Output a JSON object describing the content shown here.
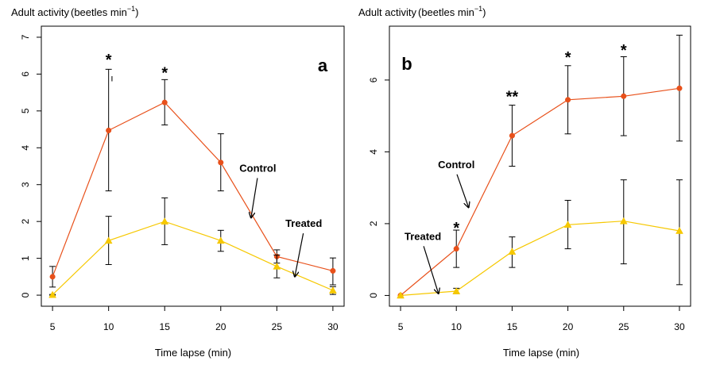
{
  "chart_data": [
    {
      "type": "line",
      "panel_label": "a",
      "ylabel": "Adult activity",
      "ylabel_unit": "beetles min",
      "ylabel_unit_exp": "−1",
      "xlabel": "Time lapse (min)",
      "x": [
        5,
        10,
        15,
        20,
        25,
        30
      ],
      "xlim": [
        4,
        31
      ],
      "ylim": [
        -0.3,
        7.3
      ],
      "xticks": [
        5,
        10,
        15,
        20,
        25,
        30
      ],
      "yticks": [
        0,
        1,
        2,
        3,
        4,
        5,
        6,
        7
      ],
      "ytick_rotation": "vertical",
      "series": [
        {
          "name": "Control",
          "color": "#E8501A",
          "marker": "circle",
          "values": [
            0.5,
            4.47,
            5.23,
            3.6,
            1.05,
            0.66
          ],
          "err_low": [
            0.22,
            2.83,
            4.62,
            2.83,
            0.87,
            0.28
          ],
          "err_high": [
            0.78,
            6.13,
            5.85,
            4.38,
            1.23,
            1.01
          ]
        },
        {
          "name": "Treated",
          "color": "#F6C800",
          "marker": "triangle",
          "values": [
            0.01,
            1.48,
            2.0,
            1.48,
            0.78,
            0.13
          ],
          "err_low": [
            0.0,
            0.83,
            1.37,
            1.19,
            0.47,
            0.02
          ],
          "err_high": [
            0.02,
            2.14,
            2.64,
            1.76,
            1.09,
            0.23
          ]
        }
      ],
      "significance": [
        {
          "x": 10,
          "y": 6.5,
          "text": "*"
        },
        {
          "x": 15,
          "y": 6.15,
          "text": "*"
        }
      ],
      "annotations": [
        {
          "text": "Control",
          "x": 23.3,
          "y": 3.35,
          "arrow_to": [
            22.7,
            2.1
          ]
        },
        {
          "text": "Treated",
          "x": 27.4,
          "y": 1.85,
          "arrow_to": [
            26.6,
            0.5
          ]
        }
      ],
      "stray_marks": [
        {
          "text": "ı",
          "x": 10.3,
          "y": 5.8
        }
      ]
    },
    {
      "type": "line",
      "panel_label": "b",
      "ylabel": "Adult activity",
      "ylabel_unit": "beetles min",
      "ylabel_unit_exp": "−1",
      "xlabel": "Time lapse (min)",
      "x": [
        5,
        10,
        15,
        20,
        25,
        30
      ],
      "xlim": [
        4,
        31
      ],
      "ylim": [
        -0.3,
        7.5
      ],
      "xticks": [
        5,
        10,
        15,
        20,
        25,
        30
      ],
      "yticks": [
        0,
        2,
        4,
        6
      ],
      "ytick_rotation": "vertical",
      "series": [
        {
          "name": "Control",
          "color": "#E8501A",
          "marker": "circle",
          "values": [
            0.0,
            1.3,
            4.45,
            5.45,
            5.55,
            5.77
          ],
          "err_low": [
            0.0,
            0.78,
            3.6,
            4.5,
            4.45,
            4.3
          ],
          "err_high": [
            0.01,
            1.82,
            5.3,
            6.4,
            6.65,
            7.25
          ]
        },
        {
          "name": "Treated",
          "color": "#F6C800",
          "marker": "triangle",
          "values": [
            0.0,
            0.12,
            1.22,
            1.97,
            2.07,
            1.8
          ],
          "err_low": [
            0.0,
            0.05,
            0.78,
            1.3,
            0.88,
            0.3
          ],
          "err_high": [
            0.0,
            0.2,
            1.63,
            2.65,
            3.22,
            3.22
          ]
        }
      ],
      "significance": [
        {
          "x": 10,
          "y": 2.0,
          "text": "*"
        },
        {
          "x": 15,
          "y": 5.65,
          "text": "**"
        },
        {
          "x": 20,
          "y": 6.75,
          "text": "*"
        },
        {
          "x": 25,
          "y": 6.95,
          "text": "*"
        }
      ],
      "annotations": [
        {
          "text": "Control",
          "x": 10.0,
          "y": 3.55,
          "arrow_to": [
            11.1,
            2.45
          ]
        },
        {
          "text": "Treated",
          "x": 7.0,
          "y": 1.55,
          "arrow_to": [
            8.4,
            0.05
          ]
        }
      ]
    }
  ]
}
